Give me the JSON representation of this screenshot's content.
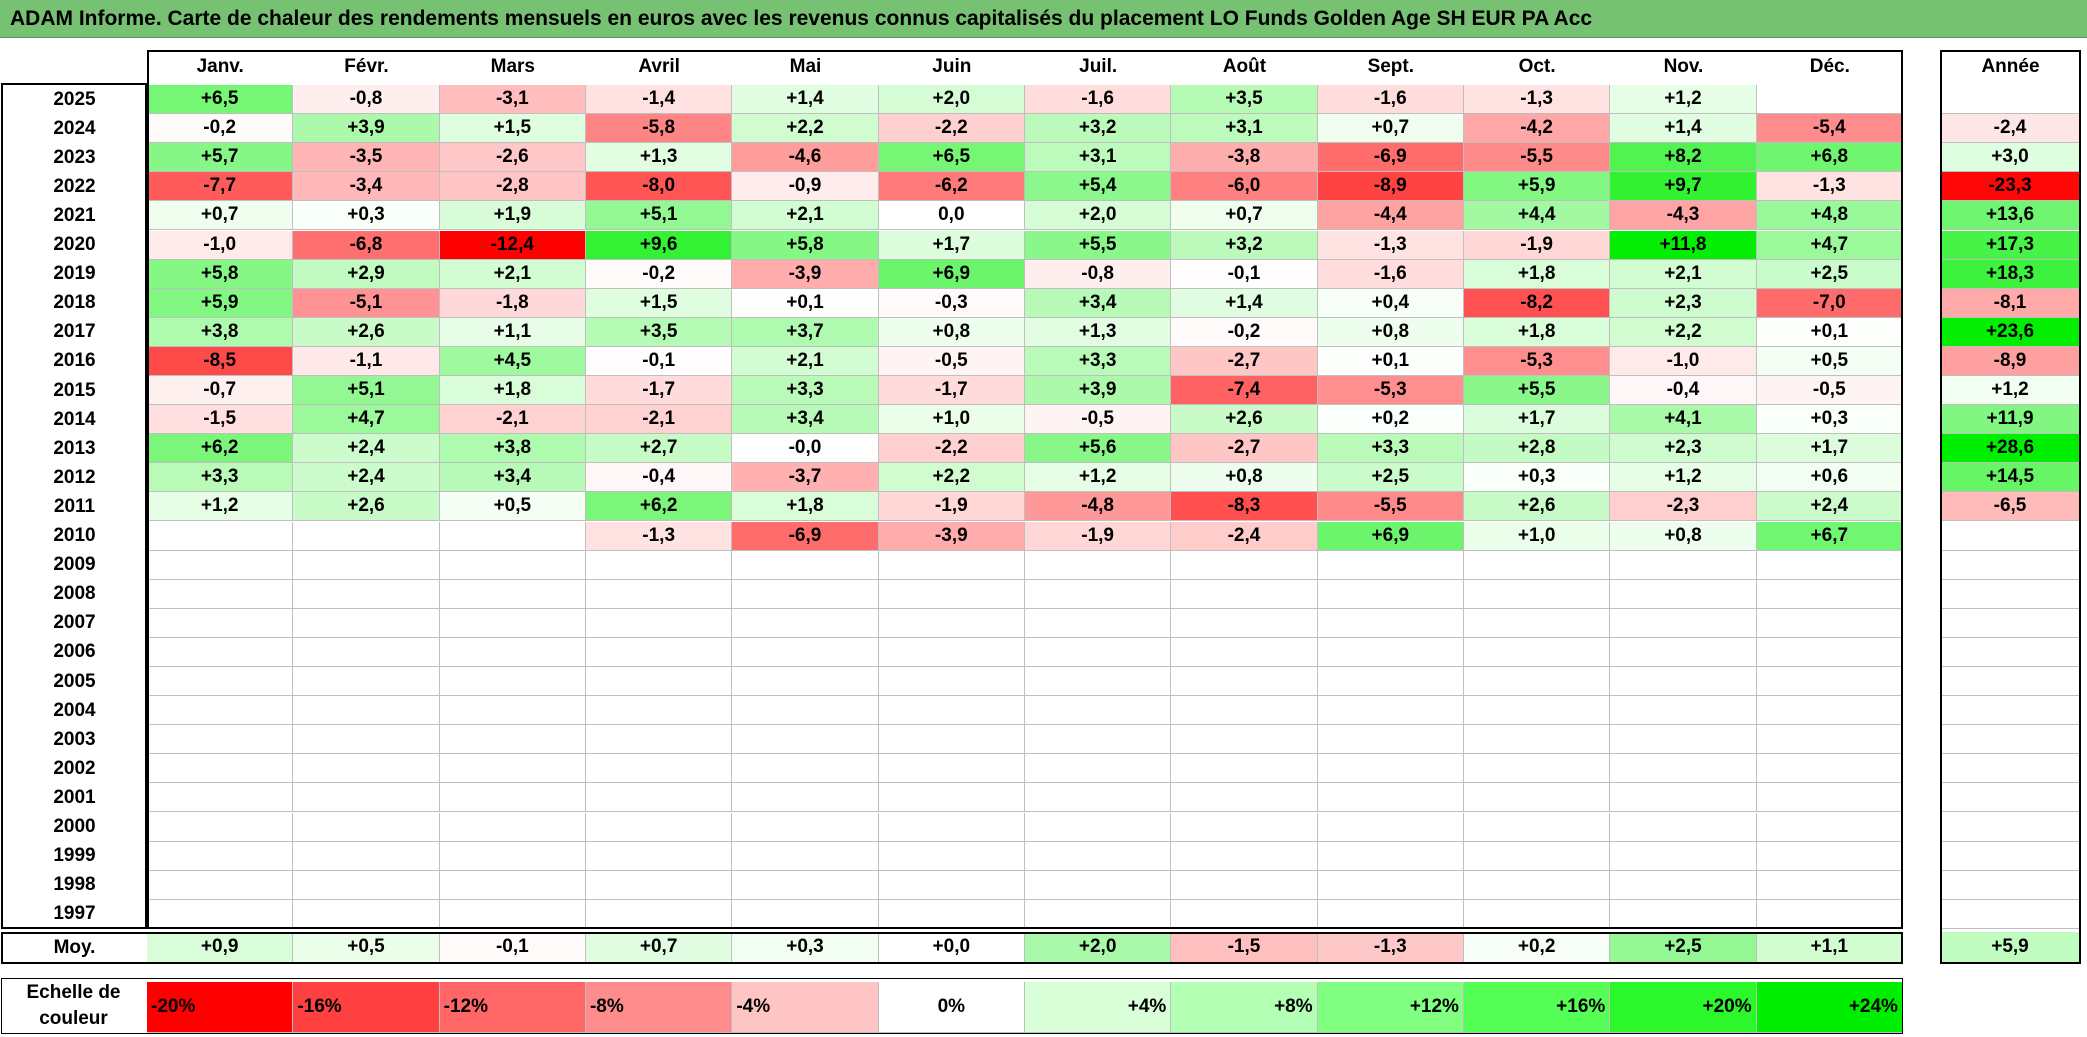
{
  "title": "ADAM Informe. Carte de chaleur des rendements mensuels en euros avec les revenus connus capitalisés du placement LO Funds Golden Age SH EUR PA Acc",
  "chart_data": {
    "type": "heatmap",
    "title": "ADAM Informe. Carte de chaleur des rendements mensuels en euros avec les revenus connus capitalisés du placement LO Funds Golden Age SH EUR PA Acc",
    "months": [
      "Janv.",
      "Févr.",
      "Mars",
      "Avril",
      "Mai",
      "Juin",
      "Juil.",
      "Août",
      "Sept.",
      "Oct.",
      "Nov.",
      "Déc."
    ],
    "annual_header": "Année",
    "rows": [
      {
        "year": "2025",
        "values": [
          "+6,5",
          "-0,8",
          "-3,1",
          "-1,4",
          "+1,4",
          "+2,0",
          "-1,6",
          "+3,5",
          "-1,6",
          "-1,3",
          "+1,2",
          ""
        ],
        "annual": ""
      },
      {
        "year": "2024",
        "values": [
          "-0,2",
          "+3,9",
          "+1,5",
          "-5,8",
          "+2,2",
          "-2,2",
          "+3,2",
          "+3,1",
          "+0,7",
          "-4,2",
          "+1,4",
          "-5,4"
        ],
        "annual": "-2,4"
      },
      {
        "year": "2023",
        "values": [
          "+5,7",
          "-3,5",
          "-2,6",
          "+1,3",
          "-4,6",
          "+6,5",
          "+3,1",
          "-3,8",
          "-6,9",
          "-5,5",
          "+8,2",
          "+6,8"
        ],
        "annual": "+3,0"
      },
      {
        "year": "2022",
        "values": [
          "-7,7",
          "-3,4",
          "-2,8",
          "-8,0",
          "-0,9",
          "-6,2",
          "+5,4",
          "-6,0",
          "-8,9",
          "+5,9",
          "+9,7",
          "-1,3"
        ],
        "annual": "-23,3"
      },
      {
        "year": "2021",
        "values": [
          "+0,7",
          "+0,3",
          "+1,9",
          "+5,1",
          "+2,1",
          "0,0",
          "+2,0",
          "+0,7",
          "-4,4",
          "+4,4",
          "-4,3",
          "+4,8"
        ],
        "annual": "+13,6"
      },
      {
        "year": "2020",
        "values": [
          "-1,0",
          "-6,8",
          "-12,4",
          "+9,6",
          "+5,8",
          "+1,7",
          "+5,5",
          "+3,2",
          "-1,3",
          "-1,9",
          "+11,8",
          "+4,7"
        ],
        "annual": "+17,3"
      },
      {
        "year": "2019",
        "values": [
          "+5,8",
          "+2,9",
          "+2,1",
          "-0,2",
          "-3,9",
          "+6,9",
          "-0,8",
          "-0,1",
          "-1,6",
          "+1,8",
          "+2,1",
          "+2,5"
        ],
        "annual": "+18,3"
      },
      {
        "year": "2018",
        "values": [
          "+5,9",
          "-5,1",
          "-1,8",
          "+1,5",
          "+0,1",
          "-0,3",
          "+3,4",
          "+1,4",
          "+0,4",
          "-8,2",
          "+2,3",
          "-7,0"
        ],
        "annual": "-8,1"
      },
      {
        "year": "2017",
        "values": [
          "+3,8",
          "+2,6",
          "+1,1",
          "+3,5",
          "+3,7",
          "+0,8",
          "+1,3",
          "-0,2",
          "+0,8",
          "+1,8",
          "+2,2",
          "+0,1"
        ],
        "annual": "+23,6"
      },
      {
        "year": "2016",
        "values": [
          "-8,5",
          "-1,1",
          "+4,5",
          "-0,1",
          "+2,1",
          "-0,5",
          "+3,3",
          "-2,7",
          "+0,1",
          "-5,3",
          "-1,0",
          "+0,5"
        ],
        "annual": "-8,9"
      },
      {
        "year": "2015",
        "values": [
          "-0,7",
          "+5,1",
          "+1,8",
          "-1,7",
          "+3,3",
          "-1,7",
          "+3,9",
          "-7,4",
          "-5,3",
          "+5,5",
          "-0,4",
          "-0,5"
        ],
        "annual": "+1,2"
      },
      {
        "year": "2014",
        "values": [
          "-1,5",
          "+4,7",
          "-2,1",
          "-2,1",
          "+3,4",
          "+1,0",
          "-0,5",
          "+2,6",
          "+0,2",
          "+1,7",
          "+4,1",
          "+0,3"
        ],
        "annual": "+11,9"
      },
      {
        "year": "2013",
        "values": [
          "+6,2",
          "+2,4",
          "+3,8",
          "+2,7",
          "-0,0",
          "-2,2",
          "+5,6",
          "-2,7",
          "+3,3",
          "+2,8",
          "+2,3",
          "+1,7"
        ],
        "annual": "+28,6"
      },
      {
        "year": "2012",
        "values": [
          "+3,3",
          "+2,4",
          "+3,4",
          "-0,4",
          "-3,7",
          "+2,2",
          "+1,2",
          "+0,8",
          "+2,5",
          "+0,3",
          "+1,2",
          "+0,6"
        ],
        "annual": "+14,5"
      },
      {
        "year": "2011",
        "values": [
          "+1,2",
          "+2,6",
          "+0,5",
          "+6,2",
          "+1,8",
          "-1,9",
          "-4,8",
          "-8,3",
          "-5,5",
          "+2,6",
          "-2,3",
          "+2,4"
        ],
        "annual": "-6,5"
      },
      {
        "year": "2010",
        "values": [
          "",
          "",
          "",
          "-1,3",
          "-6,9",
          "-3,9",
          "-1,9",
          "-2,4",
          "+6,9",
          "+1,0",
          "+0,8",
          "+6,7"
        ],
        "annual": ""
      },
      {
        "year": "2009",
        "values": [
          "",
          "",
          "",
          "",
          "",
          "",
          "",
          "",
          "",
          "",
          "",
          ""
        ],
        "annual": ""
      },
      {
        "year": "2008",
        "values": [
          "",
          "",
          "",
          "",
          "",
          "",
          "",
          "",
          "",
          "",
          "",
          ""
        ],
        "annual": ""
      },
      {
        "year": "2007",
        "values": [
          "",
          "",
          "",
          "",
          "",
          "",
          "",
          "",
          "",
          "",
          "",
          ""
        ],
        "annual": ""
      },
      {
        "year": "2006",
        "values": [
          "",
          "",
          "",
          "",
          "",
          "",
          "",
          "",
          "",
          "",
          "",
          ""
        ],
        "annual": ""
      },
      {
        "year": "2005",
        "values": [
          "",
          "",
          "",
          "",
          "",
          "",
          "",
          "",
          "",
          "",
          "",
          ""
        ],
        "annual": ""
      },
      {
        "year": "2004",
        "values": [
          "",
          "",
          "",
          "",
          "",
          "",
          "",
          "",
          "",
          "",
          "",
          ""
        ],
        "annual": ""
      },
      {
        "year": "2003",
        "values": [
          "",
          "",
          "",
          "",
          "",
          "",
          "",
          "",
          "",
          "",
          "",
          ""
        ],
        "annual": ""
      },
      {
        "year": "2002",
        "values": [
          "",
          "",
          "",
          "",
          "",
          "",
          "",
          "",
          "",
          "",
          "",
          ""
        ],
        "annual": ""
      },
      {
        "year": "2001",
        "values": [
          "",
          "",
          "",
          "",
          "",
          "",
          "",
          "",
          "",
          "",
          "",
          ""
        ],
        "annual": ""
      },
      {
        "year": "2000",
        "values": [
          "",
          "",
          "",
          "",
          "",
          "",
          "",
          "",
          "",
          "",
          "",
          ""
        ],
        "annual": ""
      },
      {
        "year": "1999",
        "values": [
          "",
          "",
          "",
          "",
          "",
          "",
          "",
          "",
          "",
          "",
          "",
          ""
        ],
        "annual": ""
      },
      {
        "year": "1998",
        "values": [
          "",
          "",
          "",
          "",
          "",
          "",
          "",
          "",
          "",
          "",
          "",
          ""
        ],
        "annual": ""
      },
      {
        "year": "1997",
        "values": [
          "",
          "",
          "",
          "",
          "",
          "",
          "",
          "",
          "",
          "",
          "",
          ""
        ],
        "annual": ""
      }
    ],
    "average": {
      "label": "Moy.",
      "values": [
        "+0,9",
        "+0,5",
        "-0,1",
        "+0,7",
        "+0,3",
        "+0,0",
        "+2,0",
        "-1,5",
        "-1,3",
        "+0,2",
        "+2,5",
        "+1,1"
      ],
      "annual": "+5,9"
    },
    "color_scale": {
      "label": "Echelle de couleur",
      "stops": [
        "-20%",
        "-16%",
        "-12%",
        "-8%",
        "-4%",
        "0%",
        "+4%",
        "+8%",
        "+12%",
        "+16%",
        "+20%",
        "+24%"
      ],
      "colors": [
        "#ff0000",
        "#ff4040",
        "#ff6666",
        "#ff8c8c",
        "#ffc4c4",
        "#ffffff",
        "#d8ffd8",
        "#b3ffb3",
        "#80ff80",
        "#55ff55",
        "#2bf72b",
        "#00ee00"
      ]
    }
  }
}
